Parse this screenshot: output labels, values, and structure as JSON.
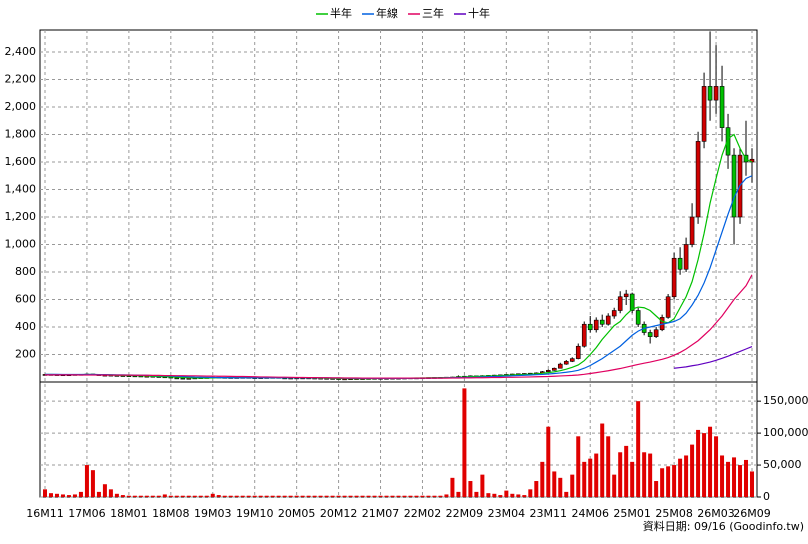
{
  "chart_data": {
    "type": "candlestick",
    "categories": [
      "16M11",
      null,
      null,
      null,
      null,
      null,
      null,
      "17M06",
      null,
      null,
      null,
      null,
      null,
      null,
      "18M01",
      null,
      null,
      null,
      null,
      null,
      null,
      "18M08",
      null,
      null,
      null,
      null,
      null,
      null,
      "19M03",
      null,
      null,
      null,
      null,
      null,
      null,
      "19M10",
      null,
      null,
      null,
      null,
      null,
      null,
      "20M05",
      null,
      null,
      null,
      null,
      null,
      null,
      "20M12",
      null,
      null,
      null,
      null,
      null,
      null,
      "21M07",
      null,
      null,
      null,
      null,
      null,
      null,
      "22M02",
      null,
      null,
      null,
      null,
      null,
      null,
      "22M09",
      null,
      null,
      null,
      null,
      null,
      null,
      "23M04",
      null,
      null,
      null,
      null,
      null,
      null,
      "23M11",
      null,
      null,
      null,
      null,
      null,
      null,
      "24M06",
      null,
      null,
      null,
      null,
      null,
      null,
      "25M01",
      null,
      null,
      null,
      null,
      null,
      null,
      "25M08",
      null,
      null,
      null,
      null,
      null,
      null,
      "26M03",
      null,
      null,
      null,
      null,
      null,
      "26M09"
    ],
    "ohlc": [
      [
        54,
        57,
        52,
        55
      ],
      [
        55,
        56,
        52,
        54
      ],
      [
        54,
        55,
        50,
        52
      ],
      [
        52,
        55,
        51,
        53
      ],
      [
        53,
        54,
        50,
        52
      ],
      [
        52,
        57,
        51,
        55
      ],
      [
        55,
        58,
        54,
        56
      ],
      [
        56,
        62,
        55,
        58
      ],
      [
        58,
        59,
        52,
        54
      ],
      [
        54,
        55,
        49,
        50
      ],
      [
        50,
        52,
        48,
        50
      ],
      [
        50,
        51,
        46,
        48
      ],
      [
        48,
        49,
        45,
        47
      ],
      [
        47,
        48,
        44,
        46
      ],
      [
        46,
        47,
        43,
        45
      ],
      [
        45,
        46,
        42,
        44
      ],
      [
        44,
        45,
        40,
        42
      ],
      [
        42,
        44,
        41,
        42
      ],
      [
        42,
        43,
        38,
        40
      ],
      [
        40,
        41,
        36,
        38
      ],
      [
        38,
        39,
        34,
        36
      ],
      [
        36,
        37,
        28,
        30
      ],
      [
        30,
        32,
        26,
        28
      ],
      [
        28,
        29,
        23,
        25
      ],
      [
        25,
        29,
        24,
        27
      ],
      [
        27,
        31,
        26,
        30
      ],
      [
        30,
        33,
        29,
        32
      ],
      [
        32,
        35,
        31,
        33
      ],
      [
        33,
        38,
        32,
        35
      ],
      [
        35,
        36,
        33,
        34
      ],
      [
        34,
        35,
        32,
        33
      ],
      [
        33,
        34,
        31,
        32
      ],
      [
        32,
        34,
        31,
        33
      ],
      [
        33,
        35,
        32,
        34
      ],
      [
        34,
        35,
        31,
        32
      ],
      [
        32,
        33,
        29,
        30
      ],
      [
        30,
        33,
        29,
        32
      ],
      [
        32,
        34,
        31,
        33
      ],
      [
        33,
        35,
        32,
        34
      ],
      [
        34,
        35,
        27,
        30
      ],
      [
        30,
        31,
        26,
        28
      ],
      [
        28,
        30,
        27,
        29
      ],
      [
        29,
        31,
        28,
        30
      ],
      [
        30,
        31,
        29,
        30
      ],
      [
        30,
        31,
        28,
        29
      ],
      [
        29,
        30,
        27,
        28
      ],
      [
        28,
        29,
        26,
        27
      ],
      [
        27,
        28,
        25,
        26
      ],
      [
        26,
        27,
        24,
        25
      ],
      [
        25,
        26,
        21,
        22
      ],
      [
        22,
        24,
        21,
        23
      ],
      [
        23,
        25,
        22,
        24
      ],
      [
        24,
        26,
        23,
        25
      ],
      [
        25,
        26,
        24,
        25
      ],
      [
        25,
        27,
        24,
        26
      ],
      [
        26,
        28,
        25,
        27
      ],
      [
        27,
        28,
        26,
        27
      ],
      [
        27,
        28,
        26,
        27
      ],
      [
        27,
        29,
        26,
        28
      ],
      [
        28,
        29,
        27,
        28
      ],
      [
        28,
        30,
        27,
        29
      ],
      [
        29,
        31,
        28,
        30
      ],
      [
        30,
        31,
        29,
        30
      ],
      [
        30,
        32,
        29,
        31
      ],
      [
        31,
        33,
        30,
        32
      ],
      [
        32,
        34,
        31,
        33
      ],
      [
        33,
        35,
        32,
        34
      ],
      [
        34,
        36,
        33,
        35
      ],
      [
        35,
        38,
        34,
        36
      ],
      [
        36,
        48,
        35,
        40
      ],
      [
        40,
        46,
        38,
        42
      ],
      [
        42,
        48,
        41,
        45
      ],
      [
        45,
        47,
        42,
        44
      ],
      [
        44,
        49,
        43,
        46
      ],
      [
        46,
        50,
        45,
        48
      ],
      [
        48,
        52,
        47,
        50
      ],
      [
        50,
        54,
        49,
        52
      ],
      [
        52,
        57,
        51,
        55
      ],
      [
        55,
        60,
        54,
        58
      ],
      [
        58,
        62,
        57,
        60
      ],
      [
        60,
        64,
        59,
        62
      ],
      [
        62,
        66,
        60,
        64
      ],
      [
        64,
        70,
        62,
        66
      ],
      [
        66,
        80,
        64,
        75
      ],
      [
        75,
        92,
        72,
        85
      ],
      [
        85,
        105,
        82,
        100
      ],
      [
        100,
        140,
        98,
        130
      ],
      [
        130,
        160,
        125,
        150
      ],
      [
        150,
        180,
        145,
        170
      ],
      [
        170,
        280,
        165,
        260
      ],
      [
        260,
        440,
        250,
        420
      ],
      [
        420,
        480,
        360,
        380
      ],
      [
        380,
        470,
        360,
        450
      ],
      [
        450,
        490,
        400,
        420
      ],
      [
        420,
        500,
        410,
        480
      ],
      [
        480,
        540,
        460,
        520
      ],
      [
        520,
        660,
        500,
        620
      ],
      [
        620,
        670,
        560,
        640
      ],
      [
        640,
        650,
        500,
        520
      ],
      [
        520,
        540,
        400,
        420
      ],
      [
        420,
        440,
        340,
        360
      ],
      [
        360,
        380,
        280,
        330
      ],
      [
        330,
        400,
        320,
        380
      ],
      [
        380,
        490,
        370,
        470
      ],
      [
        470,
        640,
        460,
        620
      ],
      [
        620,
        940,
        600,
        900
      ],
      [
        900,
        980,
        780,
        820
      ],
      [
        820,
        1050,
        800,
        1000
      ],
      [
        1000,
        1300,
        980,
        1200
      ],
      [
        1200,
        1820,
        1150,
        1750
      ],
      [
        1750,
        2250,
        1700,
        2150
      ],
      [
        2150,
        2550,
        1900,
        2050
      ],
      [
        2050,
        2450,
        1950,
        2150
      ],
      [
        2150,
        2300,
        1750,
        1850
      ],
      [
        1850,
        1950,
        1550,
        1650
      ],
      [
        1650,
        1700,
        1000,
        1200
      ],
      [
        1200,
        1700,
        1150,
        1650
      ],
      [
        1650,
        1900,
        1500,
        1600
      ],
      [
        1600,
        1700,
        1450,
        1620
      ]
    ],
    "up_color": "#d00000",
    "down_color": "#00c000",
    "volume": [
      12000,
      6000,
      5000,
      4000,
      3000,
      4000,
      8000,
      50000,
      42000,
      8000,
      20000,
      12000,
      5000,
      3000,
      2000,
      2000,
      2000,
      2000,
      2000,
      2000,
      4000,
      2000,
      2000,
      2000,
      2000,
      2000,
      2000,
      2000,
      5000,
      3000,
      2000,
      2000,
      2000,
      2000,
      2000,
      2000,
      2000,
      2000,
      2000,
      2000,
      2000,
      2000,
      2000,
      2000,
      2000,
      2000,
      2000,
      2000,
      2000,
      2000,
      2000,
      2000,
      2000,
      2000,
      2000,
      2000,
      2000,
      2000,
      2000,
      2000,
      2000,
      2000,
      2000,
      2000,
      2000,
      2000,
      2000,
      4000,
      30000,
      8000,
      170000,
      25000,
      8000,
      35000,
      6000,
      5000,
      3000,
      10000,
      5000,
      4000,
      3000,
      12000,
      25000,
      55000,
      110000,
      40000,
      30000,
      8000,
      35000,
      95000,
      55000,
      60000,
      68000,
      115000,
      95000,
      35000,
      70000,
      80000,
      55000,
      150000,
      70000,
      68000,
      25000,
      45000,
      48000,
      50000,
      60000,
      65000,
      82000,
      105000,
      100000,
      110000,
      95000,
      65000,
      55000,
      62000,
      50000,
      58000,
      40000
    ],
    "volume_color": "#e00000",
    "series": [
      {
        "name": "半年",
        "color": "#00c000",
        "values": [
          55,
          55,
          54,
          54,
          53,
          53,
          54,
          55,
          55,
          54,
          53,
          52,
          50,
          49,
          48,
          47,
          45,
          44,
          42,
          41,
          39,
          37,
          35,
          33,
          31,
          30,
          29,
          29,
          30,
          31,
          32,
          33,
          33,
          33,
          33,
          32,
          32,
          32,
          32,
          32,
          31,
          30,
          30,
          30,
          29,
          29,
          29,
          28,
          27,
          26,
          25,
          24,
          24,
          24,
          24,
          25,
          26,
          26,
          27,
          27,
          28,
          28,
          29,
          29,
          30,
          31,
          31,
          32,
          33,
          35,
          37,
          39,
          41,
          42,
          44,
          45,
          47,
          49,
          51,
          53,
          55,
          57,
          59,
          63,
          68,
          74,
          82,
          93,
          107,
          124,
          155,
          200,
          250,
          310,
          360,
          410,
          440,
          490,
          530,
          545,
          540,
          520,
          480,
          440,
          430,
          460,
          540,
          620,
          730,
          890,
          1080,
          1300,
          1480,
          1650,
          1770,
          1800,
          1700,
          1620,
          1600
        ]
      },
      {
        "name": "年線",
        "color": "#0060e0",
        "values": [
          56,
          56,
          56,
          55,
          55,
          55,
          55,
          55,
          55,
          54,
          54,
          53,
          52,
          52,
          51,
          50,
          49,
          48,
          47,
          46,
          45,
          43,
          42,
          40,
          38,
          36,
          35,
          34,
          33,
          32,
          32,
          31,
          31,
          31,
          31,
          31,
          31,
          31,
          31,
          31,
          31,
          31,
          31,
          31,
          30,
          30,
          30,
          30,
          29,
          29,
          28,
          27,
          27,
          26,
          26,
          26,
          26,
          26,
          26,
          26,
          26,
          27,
          27,
          28,
          28,
          29,
          29,
          30,
          31,
          32,
          33,
          34,
          35,
          37,
          38,
          40,
          41,
          43,
          45,
          47,
          49,
          51,
          53,
          55,
          58,
          62,
          66,
          71,
          77,
          85,
          100,
          120,
          145,
          170,
          200,
          230,
          260,
          300,
          340,
          370,
          390,
          400,
          410,
          420,
          430,
          440,
          460,
          500,
          560,
          630,
          720,
          830,
          960,
          1090,
          1220,
          1340,
          1430,
          1480,
          1500
        ]
      },
      {
        "name": "三年",
        "color": "#e00060",
        "values": [
          52,
          52,
          52,
          52,
          52,
          52,
          51,
          51,
          51,
          51,
          51,
          50,
          50,
          50,
          50,
          49,
          49,
          49,
          48,
          48,
          47,
          47,
          46,
          46,
          45,
          45,
          44,
          43,
          43,
          42,
          42,
          41,
          40,
          40,
          39,
          38,
          37,
          37,
          36,
          35,
          35,
          34,
          33,
          33,
          32,
          32,
          31,
          31,
          30,
          30,
          29,
          29,
          29,
          28,
          28,
          28,
          28,
          28,
          28,
          28,
          28,
          28,
          28,
          28,
          28,
          28,
          28,
          28,
          29,
          29,
          30,
          30,
          31,
          31,
          32,
          33,
          33,
          34,
          34,
          35,
          36,
          37,
          38,
          39,
          40,
          42,
          44,
          46,
          48,
          51,
          56,
          62,
          68,
          75,
          82,
          90,
          98,
          108,
          118,
          128,
          137,
          145,
          155,
          165,
          178,
          195,
          215,
          240,
          270,
          300,
          340,
          380,
          430,
          480,
          540,
          600,
          650,
          700,
          780
        ]
      },
      {
        "name": "十年",
        "color": "#6000c0",
        "values": [
          null,
          null,
          null,
          null,
          null,
          null,
          null,
          null,
          null,
          null,
          null,
          null,
          null,
          null,
          null,
          null,
          null,
          null,
          null,
          null,
          null,
          null,
          null,
          null,
          null,
          null,
          null,
          null,
          null,
          null,
          null,
          null,
          null,
          null,
          null,
          null,
          null,
          null,
          null,
          null,
          null,
          null,
          null,
          null,
          null,
          null,
          null,
          null,
          null,
          null,
          null,
          null,
          null,
          null,
          null,
          null,
          null,
          null,
          null,
          null,
          null,
          null,
          null,
          null,
          null,
          null,
          null,
          null,
          null,
          null,
          null,
          null,
          null,
          null,
          null,
          null,
          null,
          null,
          null,
          null,
          null,
          null,
          null,
          null,
          null,
          null,
          null,
          null,
          null,
          null,
          null,
          null,
          null,
          null,
          null,
          null,
          null,
          null,
          null,
          null,
          null,
          null,
          null,
          null,
          null,
          100,
          105,
          110,
          118,
          125,
          135,
          145,
          158,
          172,
          188,
          205,
          222,
          240,
          258
        ]
      }
    ],
    "ylim": [
      0,
      2560
    ],
    "yticks": [
      200,
      400,
      600,
      800,
      {
        "value": 1000,
        "label": "1,000"
      },
      {
        "value": 1200,
        "label": "1,200"
      },
      {
        "value": 1400,
        "label": "1,400"
      },
      {
        "value": 1600,
        "label": "1,600"
      },
      {
        "value": 1800,
        "label": "1,800"
      },
      {
        "value": 2000,
        "label": "2,000"
      },
      {
        "value": 2200,
        "label": "2,200"
      },
      {
        "value": 2400,
        "label": "2,400"
      }
    ],
    "y2lim": [
      0,
      180000
    ],
    "y2ticks": [
      0,
      {
        "value": 50000,
        "label": "50,000"
      },
      {
        "value": 100000,
        "label": "100,000"
      },
      {
        "value": 150000,
        "label": "150,000"
      }
    ],
    "grid": true,
    "footnote": "資料日期: 09/16 (Goodinfo.tw)"
  }
}
